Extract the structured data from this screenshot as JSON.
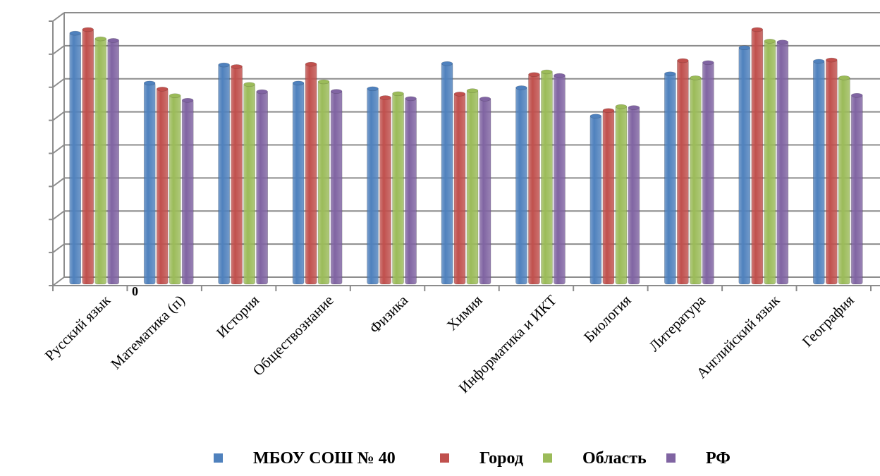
{
  "chart_data": {
    "type": "bar",
    "categories": [
      "Русский язык",
      "Математика (п)",
      "История",
      "Обществознание",
      "Физика",
      "Химия",
      "Информатика и ИКТ",
      "Биология",
      "Литература",
      "Английский язык",
      "География"
    ],
    "series": [
      {
        "name": "МБОУ СОШ № 40",
        "color": "#4F81BD",
        "values": [
          75.5,
          60.4,
          65.9,
          60.4,
          58.7,
          66.3,
          59.0,
          50.4,
          63.2,
          71.1,
          67.0
        ]
      },
      {
        "name": "Город",
        "color": "#C0504D",
        "values": [
          76.6,
          58.6,
          65.4,
          66.1,
          56.0,
          57.1,
          63.0,
          52.1,
          67.2,
          76.6,
          67.4
        ]
      },
      {
        "name": "Область",
        "color": "#9BBB59",
        "values": [
          73.8,
          56.6,
          60.0,
          60.8,
          57.2,
          58.1,
          63.8,
          53.3,
          62.0,
          73.1,
          62.0
        ]
      },
      {
        "name": "РФ",
        "color": "#8064A2",
        "values": [
          73.3,
          55.2,
          57.8,
          57.9,
          55.7,
          55.6,
          62.7,
          53.0,
          66.6,
          72.8,
          56.7
        ]
      }
    ],
    "ylim": [
      0,
      80
    ],
    "legend_position": "bottom",
    "grid": true,
    "y_tick_label": "0"
  }
}
